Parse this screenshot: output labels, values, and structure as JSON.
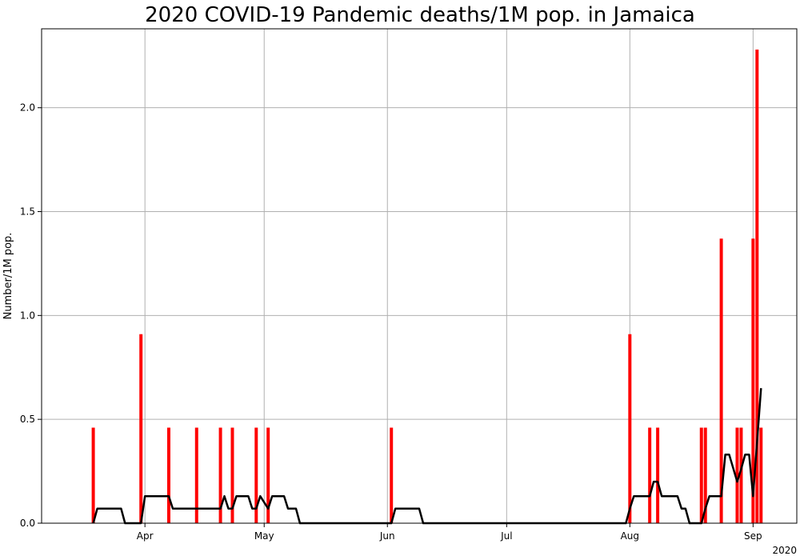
{
  "chart_data": {
    "type": "bar",
    "title": "2020 COVID-19 Pandemic deaths/1M pop. in Jamaica",
    "ylabel": "Number/1M pop.",
    "xlabel": "",
    "year_label": "2020",
    "ylim": [
      0,
      2.38
    ],
    "grid": true,
    "x_ticks": [
      {
        "date": "2020-04-01",
        "label": "Apr"
      },
      {
        "date": "2020-05-01",
        "label": "May"
      },
      {
        "date": "2020-06-01",
        "label": "Jun"
      },
      {
        "date": "2020-07-01",
        "label": "Jul"
      },
      {
        "date": "2020-08-01",
        "label": "Aug"
      },
      {
        "date": "2020-09-01",
        "label": "Sep"
      }
    ],
    "y_ticks": [
      {
        "value": 0.0,
        "label": "0.0"
      },
      {
        "value": 0.5,
        "label": "0.5"
      },
      {
        "value": 1.0,
        "label": "1.0"
      },
      {
        "value": 1.5,
        "label": "1.5"
      },
      {
        "value": 2.0,
        "label": "2.0"
      }
    ],
    "x_range": [
      "2020-03-06",
      "2020-09-12"
    ],
    "bar_color": "#ff0000",
    "line_color": "#000000",
    "series": [
      {
        "type": "bar",
        "dates": [
          "2020-03-19",
          "2020-03-31",
          "2020-04-07",
          "2020-04-14",
          "2020-04-20",
          "2020-04-23",
          "2020-04-29",
          "2020-05-02",
          "2020-06-02",
          "2020-08-01",
          "2020-08-06",
          "2020-08-08",
          "2020-08-19",
          "2020-08-20",
          "2020-08-24",
          "2020-08-28",
          "2020-08-29",
          "2020-09-01",
          "2020-09-02",
          "2020-09-03"
        ],
        "values": [
          0.46,
          0.91,
          0.46,
          0.46,
          0.46,
          0.46,
          0.46,
          0.46,
          0.46,
          0.91,
          0.46,
          0.46,
          0.46,
          0.46,
          1.37,
          0.46,
          0.46,
          1.37,
          2.28,
          0.46
        ]
      },
      {
        "type": "line",
        "dates": [
          "2020-03-19",
          "2020-03-20",
          "2020-03-26",
          "2020-03-27",
          "2020-03-31",
          "2020-04-01",
          "2020-04-07",
          "2020-04-08",
          "2020-04-20",
          "2020-04-21",
          "2020-04-22",
          "2020-04-23",
          "2020-04-24",
          "2020-04-27",
          "2020-04-28",
          "2020-04-29",
          "2020-04-30",
          "2020-05-02",
          "2020-05-03",
          "2020-05-06",
          "2020-05-07",
          "2020-05-09",
          "2020-05-10",
          "2020-06-02",
          "2020-06-03",
          "2020-06-09",
          "2020-06-10",
          "2020-07-31",
          "2020-08-01",
          "2020-08-02",
          "2020-08-06",
          "2020-08-07",
          "2020-08-08",
          "2020-08-09",
          "2020-08-13",
          "2020-08-14",
          "2020-08-15",
          "2020-08-16",
          "2020-08-19",
          "2020-08-20",
          "2020-08-21",
          "2020-08-24",
          "2020-08-25",
          "2020-08-26",
          "2020-08-28",
          "2020-08-29",
          "2020-08-30",
          "2020-08-31",
          "2020-09-01",
          "2020-09-03"
        ],
        "values": [
          0.0,
          0.07,
          0.07,
          0.0,
          0.0,
          0.13,
          0.13,
          0.07,
          0.07,
          0.13,
          0.07,
          0.07,
          0.13,
          0.13,
          0.07,
          0.07,
          0.13,
          0.07,
          0.13,
          0.13,
          0.07,
          0.07,
          0.0,
          0.0,
          0.07,
          0.07,
          0.0,
          0.0,
          0.07,
          0.13,
          0.13,
          0.2,
          0.2,
          0.13,
          0.13,
          0.07,
          0.07,
          0.0,
          0.0,
          0.07,
          0.13,
          0.13,
          0.33,
          0.33,
          0.2,
          0.26,
          0.33,
          0.33,
          0.13,
          0.65
        ]
      }
    ]
  }
}
